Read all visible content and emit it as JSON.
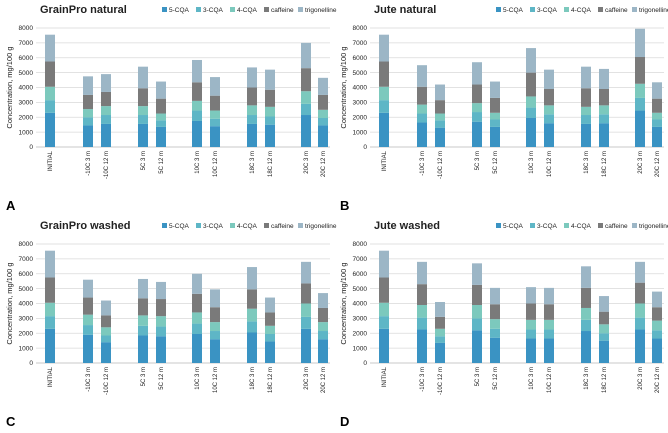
{
  "figure": {
    "series_names": [
      "5-CQA",
      "3-CQA",
      "4-CQA",
      "caffeine",
      "trigonelline"
    ],
    "colors": [
      "#3a93c3",
      "#5eb6c6",
      "#7cc9bd",
      "#7a7a7a",
      "#9cb6c6"
    ],
    "x_labels": [
      "INITIAL",
      "-10C  3 m",
      "-10C  12 m",
      "5C  3 m",
      "5C  12 m",
      "10C  3 m",
      "10C  12 m",
      "18C  3 m",
      "18C  12 m",
      "20C  3 m",
      "20C  12 m"
    ],
    "y_label": "Concentration, mg/100 g",
    "y_ticks": [
      "0",
      "1000",
      "2000",
      "3000",
      "4000",
      "5000",
      "6000",
      "7000",
      "8000"
    ]
  },
  "chart_data": [
    {
      "type": "bar",
      "stacked": true,
      "panel_label": "A",
      "title": "GrainPro natural",
      "ylabel": "Concentration, mg/100 g",
      "ylim": [
        0,
        8000
      ],
      "legend": "top",
      "categories": [
        "INITIAL",
        "-10C  3 m",
        "-10C  12 m",
        "5C  3 m",
        "5C  12 m",
        "10C  3 m",
        "10C  12 m",
        "18C  3 m",
        "18C  12 m",
        "20C  3 m",
        "20C  12 m"
      ],
      "series": [
        {
          "name": "5-CQA",
          "values": [
            2300,
            1450,
            1550,
            1550,
            1350,
            1750,
            1400,
            1550,
            1500,
            2150,
            1450
          ]
        },
        {
          "name": "3-CQA",
          "values": [
            850,
            550,
            600,
            600,
            450,
            700,
            500,
            600,
            550,
            750,
            500
          ]
        },
        {
          "name": "4-CQA",
          "values": [
            900,
            550,
            600,
            600,
            450,
            650,
            550,
            650,
            650,
            850,
            550
          ]
        },
        {
          "name": "caffeine",
          "values": [
            1700,
            950,
            950,
            1200,
            1000,
            1250,
            1000,
            1200,
            1150,
            1550,
            1000
          ]
        },
        {
          "name": "trigonelline",
          "values": [
            1800,
            1250,
            1200,
            1450,
            1150,
            1500,
            1250,
            1350,
            1350,
            1700,
            1150
          ]
        }
      ]
    },
    {
      "type": "bar",
      "stacked": true,
      "panel_label": "B",
      "title": "Jute natural",
      "ylabel": "Concentration, mg/100 g",
      "ylim": [
        0,
        8000
      ],
      "legend": "top",
      "categories": [
        "INITIAL",
        "-10C  3 m",
        "-10C  12 m",
        "5C  3 m",
        "5C  12 m",
        "10C  3 m",
        "10C  12 m",
        "18C  3 m",
        "18C  12 m",
        "20C  3 m",
        "20C  12 m"
      ],
      "series": [
        {
          "name": "5-CQA",
          "values": [
            2300,
            1650,
            1300,
            1700,
            1350,
            1950,
            1600,
            1550,
            1600,
            2450,
            1350
          ]
        },
        {
          "name": "3-CQA",
          "values": [
            850,
            600,
            500,
            650,
            500,
            700,
            600,
            600,
            600,
            850,
            500
          ]
        },
        {
          "name": "4-CQA",
          "values": [
            900,
            600,
            450,
            600,
            450,
            750,
            600,
            550,
            600,
            950,
            450
          ]
        },
        {
          "name": "caffeine",
          "values": [
            1700,
            1200,
            900,
            1250,
            1000,
            1600,
            1100,
            1250,
            1100,
            1800,
            950
          ]
        },
        {
          "name": "trigonelline",
          "values": [
            1800,
            1450,
            1050,
            1500,
            1100,
            1650,
            1300,
            1450,
            1350,
            1900,
            1100
          ]
        }
      ]
    },
    {
      "type": "bar",
      "stacked": true,
      "panel_label": "C",
      "title": "GrainPro washed",
      "ylabel": "Concentration, mg/100 g",
      "ylim": [
        0,
        8000
      ],
      "legend": "top",
      "categories": [
        "INITIAL",
        "-10C  3 m",
        "-10C  12 m",
        "5C  3 m",
        "5C  12 m",
        "10C  3 m",
        "10C  12 m",
        "18C  3 m",
        "18C  12 m",
        "20C  3 m",
        "20C  12 m"
      ],
      "series": [
        {
          "name": "5-CQA",
          "values": [
            2300,
            1900,
            1400,
            1850,
            1800,
            1950,
            1600,
            2050,
            1450,
            2300,
            1600
          ]
        },
        {
          "name": "3-CQA",
          "values": [
            850,
            650,
            450,
            650,
            650,
            700,
            550,
            750,
            500,
            800,
            550
          ]
        },
        {
          "name": "4-CQA",
          "values": [
            900,
            700,
            550,
            700,
            700,
            750,
            600,
            850,
            550,
            900,
            600
          ]
        },
        {
          "name": "caffeine",
          "values": [
            1700,
            1150,
            800,
            1150,
            1150,
            1250,
            1000,
            1300,
            900,
            1350,
            950
          ]
        },
        {
          "name": "trigonelline",
          "values": [
            1800,
            1200,
            1000,
            1300,
            1150,
            1350,
            1200,
            1500,
            1000,
            1450,
            1000
          ]
        }
      ]
    },
    {
      "type": "bar",
      "stacked": true,
      "panel_label": "D",
      "title": "Jute washed",
      "ylabel": "Concentration, mg/100 g",
      "ylim": [
        0,
        8000
      ],
      "legend": "top",
      "categories": [
        "INITIAL",
        "-10C  3 m",
        "-10C  12 m",
        "5C  3 m",
        "5C  12 m",
        "10C  3 m",
        "10C  12 m",
        "18C  3 m",
        "18C  12 m",
        "20C  3 m",
        "20C  12 m"
      ],
      "series": [
        {
          "name": "5-CQA",
          "values": [
            2300,
            2250,
            1350,
            2200,
            1700,
            1650,
            1650,
            2150,
            1500,
            2250,
            1650
          ]
        },
        {
          "name": "3-CQA",
          "values": [
            850,
            800,
            450,
            800,
            600,
            600,
            600,
            750,
            500,
            800,
            550
          ]
        },
        {
          "name": "4-CQA",
          "values": [
            900,
            850,
            500,
            900,
            650,
            650,
            650,
            800,
            600,
            950,
            650
          ]
        },
        {
          "name": "caffeine",
          "values": [
            1700,
            1400,
            800,
            1350,
            1000,
            1100,
            1050,
            1350,
            850,
            1400,
            900
          ]
        },
        {
          "name": "trigonelline",
          "values": [
            1800,
            1500,
            1000,
            1450,
            1100,
            1100,
            1100,
            1450,
            1050,
            1400,
            1050
          ]
        }
      ]
    }
  ]
}
